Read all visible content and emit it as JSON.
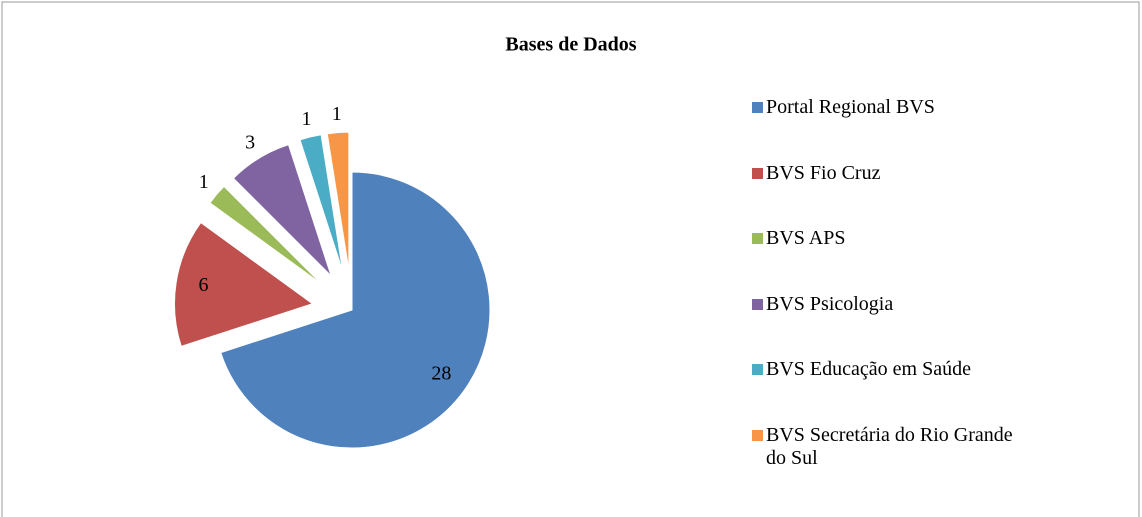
{
  "chart_data": {
    "type": "pie",
    "title": "Bases de Dados",
    "categories": [
      "Portal Regional BVS",
      "BVS Fio Cruz",
      "BVS APS",
      "BVS Psicologia",
      "BVS Educação em Saúde",
      "BVS Secretária do Rio Grande do Sul"
    ],
    "values": [
      28,
      6,
      1,
      3,
      1,
      1
    ],
    "colors": [
      "#4f81bd",
      "#c0504d",
      "#9bbb59",
      "#8064a2",
      "#4bacc6",
      "#f79646"
    ],
    "legend": "right"
  }
}
